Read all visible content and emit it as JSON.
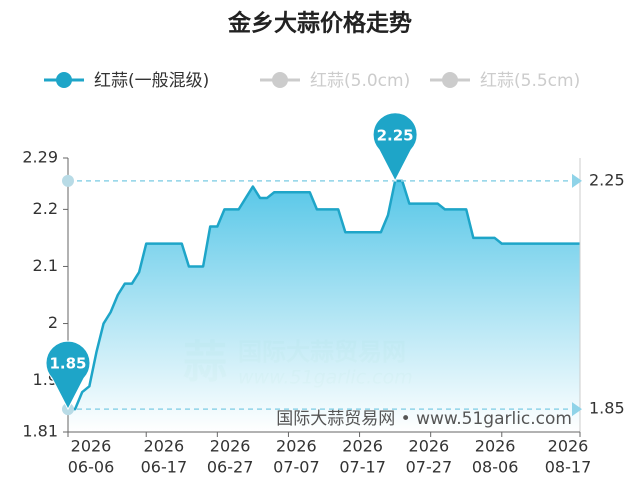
{
  "chart_data": {
    "type": "line",
    "title": "金乡大蒜价格走势",
    "legend": [
      {
        "name": "红蒜(一般混级)",
        "color": "#1ea5c8",
        "active": true
      },
      {
        "name": "红蒜(5.0cm)",
        "color": "#cccccc",
        "active": false
      },
      {
        "name": "红蒜(5.5cm)",
        "color": "#cccccc",
        "active": false
      }
    ],
    "x": [
      "2026-06-06",
      "2026-06-07",
      "2026-06-08",
      "2026-06-09",
      "2026-06-10",
      "2026-06-11",
      "2026-06-12",
      "2026-06-13",
      "2026-06-14",
      "2026-06-15",
      "2026-06-16",
      "2026-06-17",
      "2026-06-18",
      "2026-06-19",
      "2026-06-20",
      "2026-06-21",
      "2026-06-22",
      "2026-06-23",
      "2026-06-24",
      "2026-06-25",
      "2026-06-26",
      "2026-06-27",
      "2026-06-28",
      "2026-06-29",
      "2026-06-30",
      "2026-07-01",
      "2026-07-02",
      "2026-07-03",
      "2026-07-04",
      "2026-07-05",
      "2026-07-06",
      "2026-07-07",
      "2026-07-08",
      "2026-07-09",
      "2026-07-10",
      "2026-07-11",
      "2026-07-12",
      "2026-07-13",
      "2026-07-14",
      "2026-07-15",
      "2026-07-16",
      "2026-07-17",
      "2026-07-18",
      "2026-07-19",
      "2026-07-20",
      "2026-07-21",
      "2026-07-22",
      "2026-07-23",
      "2026-07-24",
      "2026-07-25",
      "2026-07-26",
      "2026-07-27",
      "2026-07-28",
      "2026-07-29",
      "2026-07-30",
      "2026-07-31",
      "2026-08-01",
      "2026-08-02",
      "2026-08-03",
      "2026-08-04",
      "2026-08-05",
      "2026-08-06",
      "2026-08-07",
      "2026-08-08",
      "2026-08-09",
      "2026-08-10",
      "2026-08-11",
      "2026-08-12",
      "2026-08-13",
      "2026-08-14",
      "2026-08-15",
      "2026-08-16",
      "2026-08-17"
    ],
    "series": [
      {
        "name": "红蒜(一般混级)",
        "color": "#1ea5c8",
        "values": [
          1.85,
          1.85,
          1.88,
          1.89,
          1.95,
          2.0,
          2.02,
          2.05,
          2.07,
          2.07,
          2.09,
          2.14,
          2.14,
          2.14,
          2.14,
          2.14,
          2.14,
          2.1,
          2.1,
          2.1,
          2.17,
          2.17,
          2.2,
          2.2,
          2.2,
          2.22,
          2.24,
          2.22,
          2.22,
          2.23,
          2.23,
          2.23,
          2.23,
          2.23,
          2.23,
          2.2,
          2.2,
          2.2,
          2.2,
          2.16,
          2.16,
          2.16,
          2.16,
          2.16,
          2.16,
          2.19,
          2.25,
          2.25,
          2.21,
          2.21,
          2.21,
          2.21,
          2.21,
          2.2,
          2.2,
          2.2,
          2.2,
          2.15,
          2.15,
          2.15,
          2.15,
          2.14,
          2.14,
          2.14,
          2.14,
          2.14,
          2.14,
          2.14,
          2.14,
          2.14,
          2.14,
          2.14,
          2.14
        ]
      }
    ],
    "xticks": [
      {
        "value": "2026-06-06",
        "label": [
          "2026",
          "06-06"
        ]
      },
      {
        "value": "2026-06-17",
        "label": [
          "2026",
          "06-17"
        ]
      },
      {
        "value": "2026-06-27",
        "label": [
          "2026",
          "06-27"
        ]
      },
      {
        "value": "2026-07-07",
        "label": [
          "2026",
          "07-07"
        ]
      },
      {
        "value": "2026-07-17",
        "label": [
          "2026",
          "07-17"
        ]
      },
      {
        "value": "2026-07-27",
        "label": [
          "2026",
          "07-27"
        ]
      },
      {
        "value": "2026-08-06",
        "label": [
          "2026",
          "08-06"
        ]
      },
      {
        "value": "2026-08-17",
        "label": [
          "2026",
          "08-17"
        ]
      }
    ],
    "ylim": [
      1.81,
      2.29
    ],
    "yticks": [
      1.81,
      1.9,
      2,
      2.1,
      2.2,
      2.29
    ],
    "mark_points": [
      {
        "x": "2026-07-22",
        "value": 2.25
      },
      {
        "x": "2026-06-06",
        "value": 1.85
      }
    ],
    "mark_lines": [
      2.25,
      1.85
    ],
    "watermark": {
      "logo": "蒜",
      "name": "国际大蒜贸易网",
      "url": "www.51garlic.com"
    },
    "source": "国际大蒜贸易网 • www.51garlic.com"
  }
}
